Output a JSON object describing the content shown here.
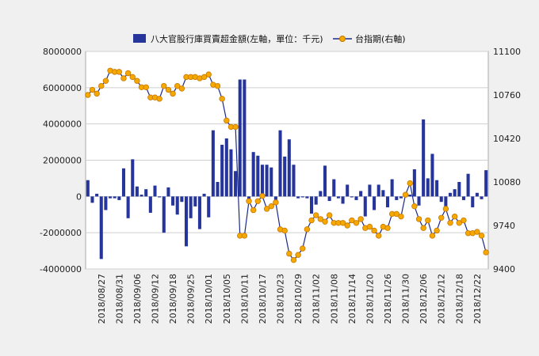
{
  "chart_data": {
    "type": "bar+line",
    "legend": {
      "bar_label": "八大官股行庫買賣超金額(左軸，單位：千元)",
      "line_label": "台指期(右軸)",
      "placement": "top-center"
    },
    "colors": {
      "bar": "#26359b",
      "line": "#1a2a8a",
      "marker_fill": "#f5a800",
      "marker_stroke": "#c87800",
      "grid": "#cfcfcf",
      "plot_bg": "#ffffff",
      "page_bg": "#f0f0f0"
    },
    "left_axis": {
      "min": -4000000,
      "max": 8000000,
      "step": 2000000,
      "tick_labels": [
        "-4000000",
        "-2000000",
        "0",
        "2000000",
        "4000000",
        "6000000",
        "8000000"
      ]
    },
    "right_axis": {
      "min": 9400,
      "max": 11100,
      "step": 340,
      "tick_labels": [
        "9400",
        "9740",
        "10080",
        "10420",
        "10760",
        "11100"
      ]
    },
    "x_tick_labels": [
      "2018/08/27",
      "2018/08/31",
      "2018/09/06",
      "2018/09/12",
      "2018/09/18",
      "2018/09/25",
      "2018/10/01",
      "2018/10/05",
      "2018/10/11",
      "2018/10/17",
      "2018/10/23",
      "2018/10/29",
      "2018/11/02",
      "2018/11/08",
      "2018/11/14",
      "2018/11/20",
      "2018/11/26",
      "2018/11/30",
      "2018/12/06",
      "2018/12/12",
      "2018/12/18",
      "2018/12/22"
    ],
    "x_tick_every": 4,
    "bars": [
      900000,
      -350000,
      150000,
      -3450000,
      -750000,
      -100000,
      -100000,
      -200000,
      1550000,
      -1200000,
      2050000,
      550000,
      100000,
      400000,
      -900000,
      600000,
      -50000,
      -2000000,
      500000,
      -500000,
      -1000000,
      -300000,
      -2750000,
      -1200000,
      -550000,
      -1800000,
      150000,
      -1150000,
      3650000,
      800000,
      2850000,
      3200000,
      2600000,
      1400000,
      6450000,
      6450000,
      -300000,
      2450000,
      2250000,
      1750000,
      1750000,
      1600000,
      -200000,
      3650000,
      2200000,
      3150000,
      1750000,
      -100000,
      -50000,
      -100000,
      -950000,
      -450000,
      300000,
      1700000,
      -250000,
      950000,
      -100000,
      -400000,
      650000,
      -50000,
      -200000,
      300000,
      -1100000,
      650000,
      -750000,
      650000,
      350000,
      -600000,
      950000,
      -200000,
      -100000,
      50000,
      100000,
      1500000,
      -500000,
      4250000,
      1000000,
      2350000,
      900000,
      -300000,
      -550000,
      200000,
      400000,
      800000,
      -200000,
      1250000,
      -600000,
      200000,
      -150000,
      1450000
    ],
    "line": [
      10760,
      10800,
      10770,
      10830,
      10870,
      10950,
      10940,
      10940,
      10890,
      10930,
      10900,
      10870,
      10820,
      10820,
      10740,
      10740,
      10730,
      10830,
      10800,
      10770,
      10830,
      10810,
      10900,
      10900,
      10900,
      10890,
      10900,
      10920,
      10840,
      10830,
      10730,
      10560,
      10510,
      10510,
      9660,
      9660,
      9930,
      9860,
      9930,
      9970,
      9870,
      9890,
      9920,
      9710,
      9700,
      9520,
      9470,
      9510,
      9560,
      9710,
      9780,
      9820,
      9790,
      9770,
      9820,
      9760,
      9760,
      9760,
      9740,
      9780,
      9760,
      9790,
      9720,
      9730,
      9700,
      9660,
      9730,
      9720,
      9830,
      9830,
      9810,
      9980,
      10070,
      9890,
      9790,
      9720,
      9780,
      9660,
      9700,
      9800,
      9870,
      9760,
      9810,
      9760,
      9780,
      9680,
      9680,
      9690,
      9660,
      9530
    ]
  }
}
